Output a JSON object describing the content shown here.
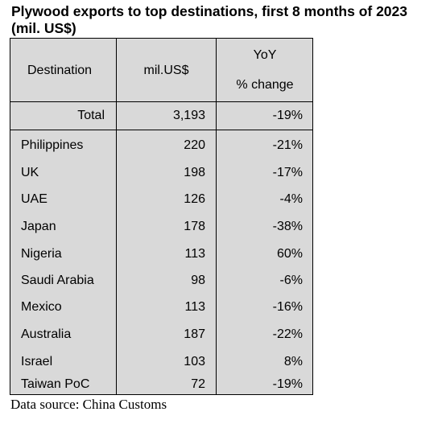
{
  "title": "Plywood exports to top destinations, first 8 months of 2023 (mil. US$)",
  "header": {
    "destination": "Destination",
    "value": "mil.US$",
    "yoy_line1": "YoY",
    "yoy_line2": "% change"
  },
  "total": {
    "label": "Total",
    "value": "3,193",
    "change": "-19%"
  },
  "rows": [
    {
      "destination": "Philippines",
      "value": "220",
      "change": "-21%"
    },
    {
      "destination": "UK",
      "value": "198",
      "change": "-17%"
    },
    {
      "destination": "UAE",
      "value": "126",
      "change": "-4%"
    },
    {
      "destination": "Japan",
      "value": "178",
      "change": "-38%"
    },
    {
      "destination": "Nigeria",
      "value": "113",
      "change": "60%"
    },
    {
      "destination": "Saudi Arabia",
      "value": "98",
      "change": "-6%"
    },
    {
      "destination": "Mexico",
      "value": "113",
      "change": "-16%"
    },
    {
      "destination": "Australia",
      "value": "187",
      "change": "-22%"
    },
    {
      "destination": "Israel",
      "value": "103",
      "change": "8%"
    },
    {
      "destination": "Taiwan PoC",
      "value": "72",
      "change": "-19%"
    }
  ],
  "source": "Data source: China Customs"
}
